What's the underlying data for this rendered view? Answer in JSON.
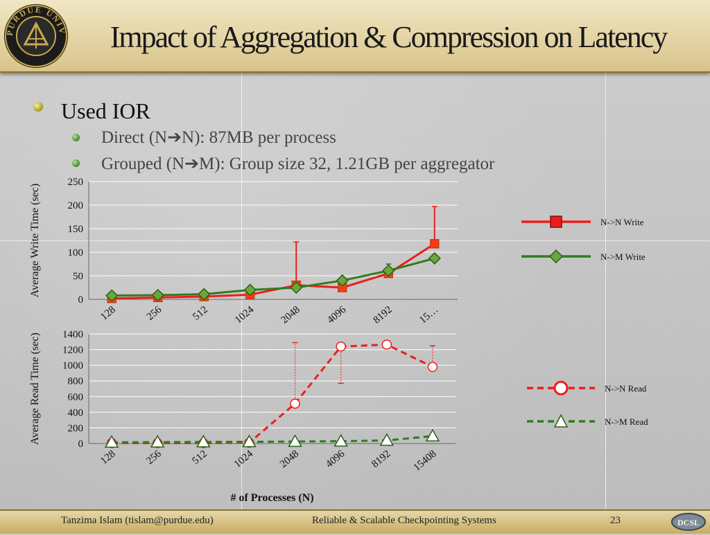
{
  "slide": {
    "title": "Impact of Aggregation & Compression on Latency",
    "logo_text": "PURDUE UNIVERSITY",
    "bullet_main": "Used IOR",
    "bullet_sub1": "Direct (N➔N): 87MB per process",
    "bullet_sub2": "Grouped (N➔M): Group size 32, 1.21GB per aggregator"
  },
  "footer": {
    "author": "Tanzima Islam (tislam@purdue.edu)",
    "subject": "Reliable & Scalable Checkpointing Systems",
    "page": "23",
    "logo_text": "DCSL"
  },
  "chart_data": [
    {
      "type": "line",
      "categories": [
        "128",
        "256",
        "512",
        "1024",
        "2048",
        "4096",
        "8192",
        "15…"
      ],
      "ylabel": "Average Write Time (sec)",
      "xlabel": "",
      "ylim": [
        0,
        250
      ],
      "yticks": [
        0,
        50,
        100,
        150,
        200,
        250
      ],
      "grid": true,
      "legend": "right",
      "series": [
        {
          "name": "N->N Write",
          "values": [
            2,
            4,
            6,
            10,
            30,
            25,
            55,
            118
          ],
          "error_high": [
            null,
            null,
            null,
            null,
            122,
            null,
            null,
            197
          ],
          "color": "#ee1c1c",
          "marker": "square",
          "dashed": false
        },
        {
          "name": "N->M Write",
          "values": [
            8,
            9,
            11,
            20,
            25,
            40,
            61,
            87
          ],
          "error_high": [
            null,
            null,
            null,
            null,
            null,
            null,
            75,
            null
          ],
          "color": "#2e7d1e",
          "marker": "diamond",
          "dashed": false
        }
      ]
    },
    {
      "type": "line",
      "categories": [
        "128",
        "256",
        "512",
        "1024",
        "2048",
        "4096",
        "8192",
        "15408"
      ],
      "ylabel": "Average Read Time (sec)",
      "xlabel": "# of Processes (N)",
      "ylim": [
        0,
        1400
      ],
      "yticks": [
        0,
        200,
        400,
        600,
        800,
        1000,
        1200,
        1400
      ],
      "grid": true,
      "legend": "right",
      "series": [
        {
          "name": "N->N Read",
          "values": [
            5,
            5,
            5,
            10,
            510,
            1240,
            1265,
            980
          ],
          "error_high": [
            null,
            null,
            null,
            null,
            1290,
            null,
            null,
            1250
          ],
          "error_low": [
            null,
            null,
            null,
            null,
            null,
            770,
            null,
            null
          ],
          "color": "#ee1c1c",
          "marker": "circle",
          "dashed": true
        },
        {
          "name": "N->M Read",
          "values": [
            15,
            18,
            20,
            22,
            25,
            30,
            40,
            95
          ],
          "color": "#2e7d1e",
          "marker": "triangle",
          "dashed": true
        }
      ]
    }
  ]
}
